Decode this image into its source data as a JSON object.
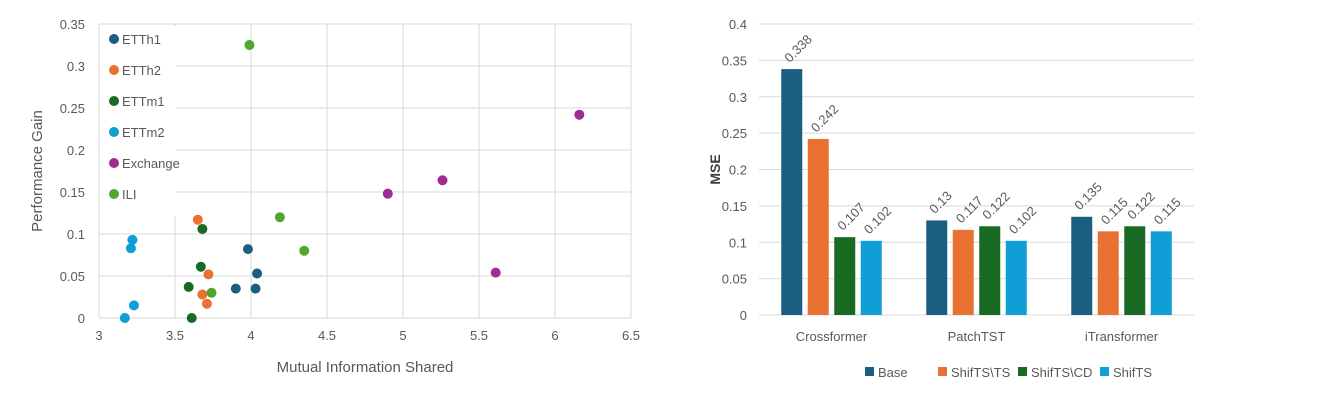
{
  "chart_data": [
    {
      "type": "scatter",
      "xlabel": "Mutual Information Shared",
      "ylabel": "Performance Gain",
      "xlim": [
        3,
        6.5
      ],
      "ylim": [
        0,
        0.35
      ],
      "xticks": [
        "3",
        "3.5",
        "4",
        "4.5",
        "5",
        "5.5",
        "6",
        "6.5"
      ],
      "yticks": [
        "0",
        "0.05",
        "0.1",
        "0.15",
        "0.2",
        "0.25",
        "0.3",
        "0.35"
      ],
      "grid": true,
      "legend_position": "top-left",
      "series": [
        {
          "name": "ETTh1",
          "color": "#1a5e80",
          "points": [
            [
              3.98,
              0.082
            ],
            [
              4.04,
              0.053
            ],
            [
              3.9,
              0.035
            ],
            [
              4.03,
              0.035
            ]
          ]
        },
        {
          "name": "ETTh2",
          "color": "#e97132",
          "points": [
            [
              3.65,
              0.117
            ],
            [
              3.72,
              0.052
            ],
            [
              3.68,
              0.028
            ],
            [
              3.71,
              0.017
            ]
          ]
        },
        {
          "name": "ETTm1",
          "color": "#196b24",
          "points": [
            [
              3.68,
              0.106
            ],
            [
              3.67,
              0.061
            ],
            [
              3.59,
              0.037
            ],
            [
              3.61,
              0.0
            ]
          ]
        },
        {
          "name": "ETTm2",
          "color": "#0f9ed5",
          "points": [
            [
              3.22,
              0.093
            ],
            [
              3.21,
              0.083
            ],
            [
              3.23,
              0.015
            ],
            [
              3.17,
              0.0
            ]
          ]
        },
        {
          "name": "Exchange",
          "color": "#a02b93",
          "points": [
            [
              6.16,
              0.242
            ],
            [
              5.26,
              0.164
            ],
            [
              4.9,
              0.148
            ],
            [
              5.61,
              0.054
            ]
          ]
        },
        {
          "name": "ILI",
          "color": "#4ea72e",
          "points": [
            [
              3.99,
              0.325
            ],
            [
              4.19,
              0.12
            ],
            [
              4.35,
              0.08
            ],
            [
              3.74,
              0.03
            ]
          ]
        }
      ]
    },
    {
      "type": "bar",
      "xlabel": "",
      "ylabel": "MSE",
      "ylim": [
        0,
        0.4
      ],
      "yticks": [
        "0",
        "0.05",
        "0.1",
        "0.15",
        "0.2",
        "0.25",
        "0.3",
        "0.35",
        "0.4"
      ],
      "grid": true,
      "legend_position": "bottom",
      "categories": [
        "Crossformer",
        "PatchTST",
        "iTransformer"
      ],
      "series": [
        {
          "name": "Base",
          "color": "#1a5e80",
          "values": [
            0.338,
            0.13,
            0.135
          ],
          "labels": [
            "0.338",
            "0.13",
            "0.135"
          ]
        },
        {
          "name": "ShifTS\\TS",
          "color": "#e97132",
          "values": [
            0.242,
            0.117,
            0.115
          ],
          "labels": [
            "0.242",
            "0.117",
            "0.115"
          ]
        },
        {
          "name": "ShifTS\\CD",
          "color": "#196b24",
          "values": [
            0.107,
            0.122,
            0.122
          ],
          "labels": [
            "0.107",
            "0.122",
            "0.122"
          ]
        },
        {
          "name": "ShifTS",
          "color": "#0f9ed5",
          "values": [
            0.102,
            0.102,
            0.115
          ],
          "labels": [
            "0.102",
            "0.102",
            "0.115"
          ]
        }
      ]
    }
  ]
}
